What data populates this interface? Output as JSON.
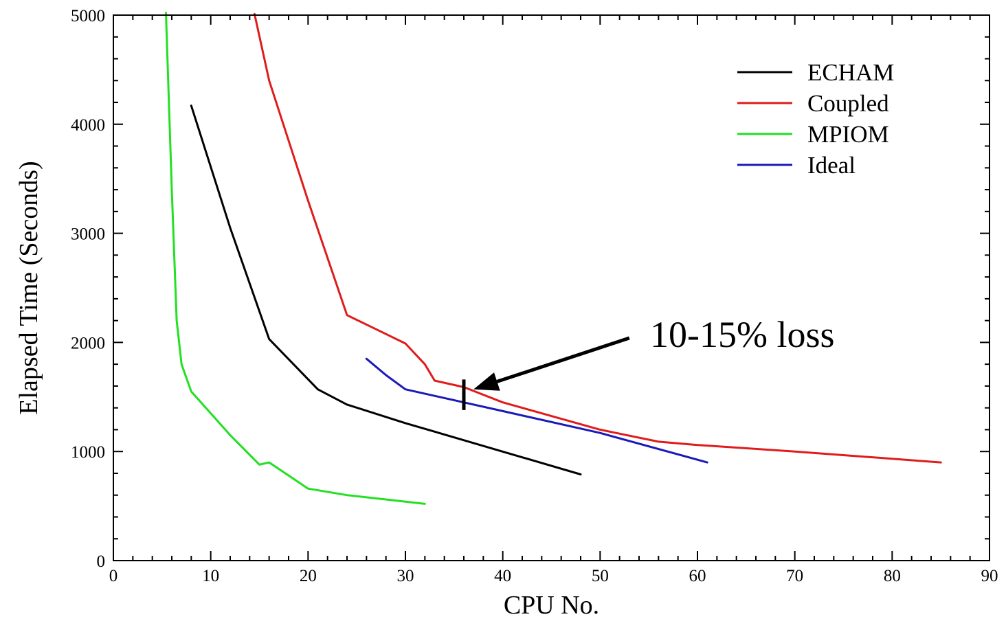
{
  "chart_data": {
    "type": "line",
    "title": "",
    "xlabel": "CPU No.",
    "ylabel": "Elapsed Time (Seconds)",
    "xlim": [
      0,
      90
    ],
    "ylim": [
      0,
      5000
    ],
    "xticks": [
      0,
      10,
      20,
      30,
      40,
      50,
      60,
      70,
      80,
      90
    ],
    "yticks": [
      0,
      1000,
      2000,
      3000,
      4000,
      5000
    ],
    "grid": false,
    "legend_position": "top-right",
    "series": [
      {
        "name": "ECHAM",
        "color": "#000000",
        "points": [
          [
            8,
            4170
          ],
          [
            12,
            3050
          ],
          [
            16,
            2030
          ],
          [
            21,
            1570
          ],
          [
            24,
            1430
          ],
          [
            30,
            1260
          ],
          [
            48,
            790
          ]
        ]
      },
      {
        "name": "Coupled",
        "color": "#e01b1b",
        "points": [
          [
            14.5,
            5010
          ],
          [
            16,
            4400
          ],
          [
            20,
            3300
          ],
          [
            24,
            2250
          ],
          [
            27,
            2120
          ],
          [
            30,
            1990
          ],
          [
            32,
            1800
          ],
          [
            33,
            1650
          ],
          [
            36,
            1590
          ],
          [
            40,
            1450
          ],
          [
            50,
            1200
          ],
          [
            56,
            1090
          ],
          [
            60,
            1060
          ],
          [
            70,
            1000
          ],
          [
            85,
            900
          ]
        ]
      },
      {
        "name": "MPIOM",
        "color": "#22e022",
        "points": [
          [
            5.4,
            5020
          ],
          [
            6,
            3400
          ],
          [
            6.5,
            2200
          ],
          [
            7,
            1800
          ],
          [
            8,
            1550
          ],
          [
            10,
            1350
          ],
          [
            12,
            1150
          ],
          [
            15,
            880
          ],
          [
            16,
            900
          ],
          [
            18,
            780
          ],
          [
            20,
            660
          ],
          [
            24,
            600
          ],
          [
            32,
            520
          ]
        ]
      },
      {
        "name": "Ideal",
        "color": "#1a1ab8",
        "points": [
          [
            26,
            1850
          ],
          [
            28,
            1700
          ],
          [
            30,
            1570
          ],
          [
            40,
            1370
          ],
          [
            50,
            1170
          ],
          [
            61,
            900
          ]
        ]
      }
    ],
    "annotations": [
      {
        "text": "10-15% loss",
        "marker_x": 36,
        "marker_y_range": [
          1380,
          1660
        ],
        "arrow_from": [
          53,
          2040
        ],
        "arrow_to": [
          37,
          1570
        ]
      }
    ]
  }
}
